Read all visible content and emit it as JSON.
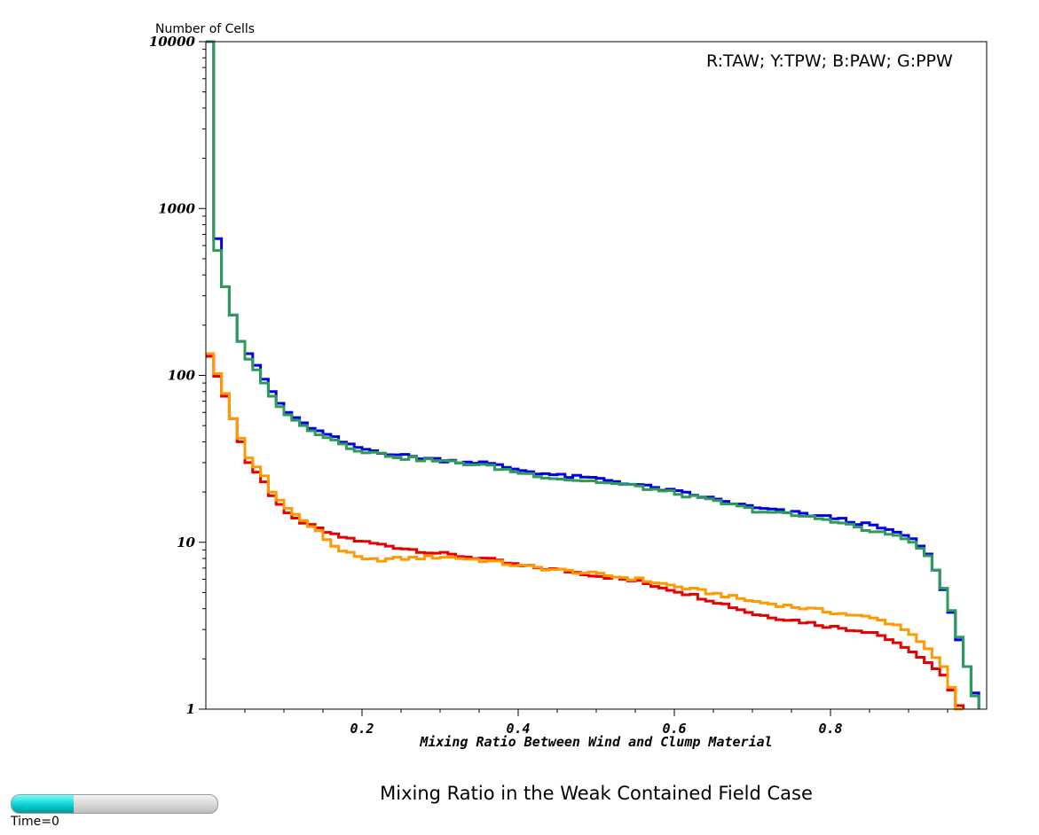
{
  "chart_data": {
    "type": "line",
    "title": "Mixing Ratio in the Weak Contained Field Case",
    "xlabel": "Mixing Ratio Between Wind and Clump Material",
    "ylabel": "Number of Cells",
    "legend_text": "R:TAW; Y:TPW; B:PAW; G:PPW",
    "xlim": [
      0,
      1
    ],
    "ylim": [
      1,
      10000
    ],
    "yscale": "log",
    "x_ticks": [
      0.2,
      0.4,
      0.6,
      0.8
    ],
    "x_tick_labels": [
      "0.2",
      "0.4",
      "0.6",
      "0.8"
    ],
    "y_ticks": [
      1,
      10,
      100,
      1000,
      10000
    ],
    "y_tick_labels": [
      "1",
      "10",
      "100",
      "1000",
      "10000"
    ],
    "grid": false,
    "legend_position": "top-right",
    "bin_width": 0.01,
    "series": [
      {
        "name": "TAW",
        "color": "#e60000",
        "bins": [
          [
            0.0,
            130
          ],
          [
            0.02,
            75
          ],
          [
            0.03,
            55
          ],
          [
            0.04,
            40
          ],
          [
            0.05,
            30
          ],
          [
            0.07,
            23
          ],
          [
            0.08,
            19
          ],
          [
            0.1,
            15
          ],
          [
            0.12,
            13
          ],
          [
            0.14,
            12
          ],
          [
            0.16,
            11
          ],
          [
            0.18,
            10.5
          ],
          [
            0.2,
            10
          ],
          [
            0.25,
            9.2
          ],
          [
            0.3,
            8.5
          ],
          [
            0.35,
            8.0
          ],
          [
            0.4,
            7.2
          ],
          [
            0.45,
            6.8
          ],
          [
            0.5,
            6.3
          ],
          [
            0.55,
            5.8
          ],
          [
            0.6,
            5.1
          ],
          [
            0.65,
            4.4
          ],
          [
            0.7,
            3.7
          ],
          [
            0.75,
            3.4
          ],
          [
            0.8,
            3.1
          ],
          [
            0.85,
            2.9
          ],
          [
            0.88,
            2.5
          ],
          [
            0.9,
            2.2
          ],
          [
            0.92,
            1.9
          ],
          [
            0.94,
            1.6
          ],
          [
            0.95,
            1.3
          ],
          [
            0.96,
            1.05
          ]
        ]
      },
      {
        "name": "TPW",
        "color": "#ff9900",
        "bins": [
          [
            0.0,
            135
          ],
          [
            0.02,
            78
          ],
          [
            0.03,
            55
          ],
          [
            0.04,
            42
          ],
          [
            0.05,
            32
          ],
          [
            0.07,
            25
          ],
          [
            0.08,
            20
          ],
          [
            0.1,
            16
          ],
          [
            0.12,
            13.5
          ],
          [
            0.14,
            11.5
          ],
          [
            0.16,
            9.5
          ],
          [
            0.18,
            8.5
          ],
          [
            0.2,
            7.8
          ],
          [
            0.25,
            8.0
          ],
          [
            0.3,
            8.2
          ],
          [
            0.35,
            7.8
          ],
          [
            0.4,
            7.2
          ],
          [
            0.45,
            6.8
          ],
          [
            0.5,
            6.4
          ],
          [
            0.55,
            6.0
          ],
          [
            0.6,
            5.4
          ],
          [
            0.65,
            4.9
          ],
          [
            0.7,
            4.4
          ],
          [
            0.75,
            4.1
          ],
          [
            0.8,
            3.8
          ],
          [
            0.85,
            3.5
          ],
          [
            0.88,
            3.2
          ],
          [
            0.9,
            2.8
          ],
          [
            0.92,
            2.3
          ],
          [
            0.94,
            1.8
          ],
          [
            0.95,
            1.35
          ],
          [
            0.96,
            1.0
          ]
        ]
      },
      {
        "name": "PAW",
        "color": "#0000e6",
        "bins": [
          [
            0.0,
            10000
          ],
          [
            0.01,
            660
          ],
          [
            0.02,
            340
          ],
          [
            0.03,
            230
          ],
          [
            0.04,
            160
          ],
          [
            0.05,
            135
          ],
          [
            0.06,
            115
          ],
          [
            0.07,
            95
          ],
          [
            0.08,
            80
          ],
          [
            0.09,
            68
          ],
          [
            0.1,
            60
          ],
          [
            0.12,
            52
          ],
          [
            0.14,
            46
          ],
          [
            0.16,
            42
          ],
          [
            0.18,
            38
          ],
          [
            0.2,
            36
          ],
          [
            0.25,
            33
          ],
          [
            0.3,
            31
          ],
          [
            0.35,
            30
          ],
          [
            0.4,
            27
          ],
          [
            0.45,
            25
          ],
          [
            0.5,
            24
          ],
          [
            0.55,
            22
          ],
          [
            0.6,
            20
          ],
          [
            0.65,
            18
          ],
          [
            0.7,
            16
          ],
          [
            0.75,
            15
          ],
          [
            0.8,
            14
          ],
          [
            0.85,
            12.5
          ],
          [
            0.88,
            11.5
          ],
          [
            0.9,
            10.5
          ],
          [
            0.91,
            9.5
          ],
          [
            0.92,
            8.5
          ],
          [
            0.93,
            6.8
          ],
          [
            0.94,
            5.2
          ],
          [
            0.95,
            3.8
          ],
          [
            0.96,
            2.6
          ],
          [
            0.97,
            1.8
          ],
          [
            0.98,
            1.25
          ]
        ]
      },
      {
        "name": "PPW",
        "color": "#2e9b57",
        "bins": [
          [
            0.0,
            10000
          ],
          [
            0.01,
            560
          ],
          [
            0.02,
            340
          ],
          [
            0.03,
            230
          ],
          [
            0.04,
            160
          ],
          [
            0.05,
            125
          ],
          [
            0.06,
            108
          ],
          [
            0.07,
            90
          ],
          [
            0.08,
            75
          ],
          [
            0.09,
            65
          ],
          [
            0.1,
            58
          ],
          [
            0.12,
            50
          ],
          [
            0.14,
            45
          ],
          [
            0.16,
            41
          ],
          [
            0.18,
            37
          ],
          [
            0.2,
            35
          ],
          [
            0.25,
            32
          ],
          [
            0.3,
            30.5
          ],
          [
            0.35,
            29
          ],
          [
            0.4,
            26
          ],
          [
            0.45,
            24
          ],
          [
            0.5,
            23
          ],
          [
            0.55,
            21.5
          ],
          [
            0.6,
            19.5
          ],
          [
            0.65,
            17.5
          ],
          [
            0.7,
            15.5
          ],
          [
            0.75,
            14.5
          ],
          [
            0.8,
            13.5
          ],
          [
            0.85,
            11.5
          ],
          [
            0.88,
            11
          ],
          [
            0.9,
            10
          ],
          [
            0.91,
            9.2
          ],
          [
            0.92,
            8.3
          ],
          [
            0.93,
            6.8
          ],
          [
            0.94,
            5.3
          ],
          [
            0.95,
            3.9
          ],
          [
            0.96,
            2.7
          ],
          [
            0.97,
            1.8
          ],
          [
            0.98,
            1.2
          ]
        ]
      }
    ]
  },
  "time_slider": {
    "label": "Time=0",
    "value": 0.3,
    "fill_color": "#00d4d4"
  }
}
